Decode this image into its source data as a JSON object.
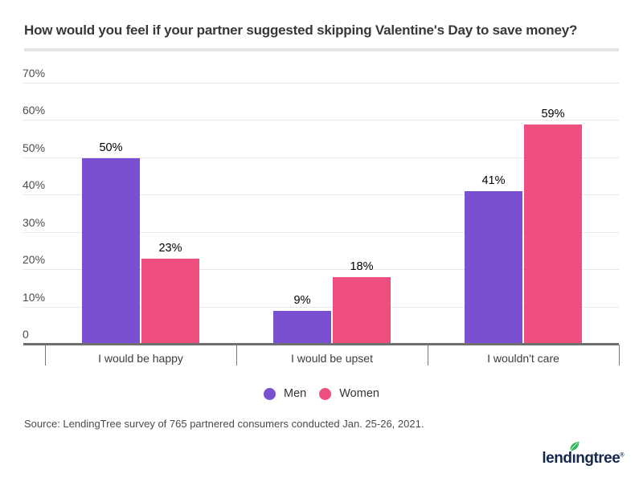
{
  "header": {
    "title": "How would you feel if your partner suggested skipping Valentine's Day to save money?"
  },
  "chart_data": {
    "type": "bar",
    "title": "How would you feel if your partner suggested skipping Valentine's Day to save money?",
    "categories": [
      "I would be happy",
      "I would be upset",
      "I wouldn't care"
    ],
    "series": [
      {
        "name": "Men",
        "color": "#7a50d3",
        "values": [
          50,
          9,
          41
        ]
      },
      {
        "name": "Women",
        "color": "#ef4f7f",
        "values": [
          23,
          18,
          59
        ]
      }
    ],
    "data_labels": {
      "Men": [
        "50%",
        "9%",
        "41%"
      ],
      "Women": [
        "23%",
        "18%",
        "59%"
      ]
    },
    "value_suffix": "%",
    "xlabel": "",
    "ylabel": "",
    "ylim": [
      0,
      70
    ],
    "yticks": [
      0,
      10,
      20,
      30,
      40,
      50,
      60,
      70
    ],
    "ytick_labels": [
      "0",
      "10%",
      "20%",
      "30%",
      "40%",
      "50%",
      "60%",
      "70%"
    ],
    "grid": true,
    "legend_position": "bottom",
    "colors": {
      "grid": "#e7e7e7",
      "axis": "#6e6e6e",
      "tick": "#7a7a7a",
      "category_label": "#3d3d3d",
      "value_label": "#000000",
      "ytick_label": "#4d4d4d"
    }
  },
  "footer": {
    "source": "Source: LendingTree survey of 765 partnered consumers conducted Jan. 25-26, 2021."
  },
  "logo": {
    "alt": "lendingtree",
    "part1": "lend",
    "part2": "ı",
    "part3": "ngtree",
    "registered": "®",
    "text_color": "#16294b",
    "leaf_color": "#2fb457"
  }
}
